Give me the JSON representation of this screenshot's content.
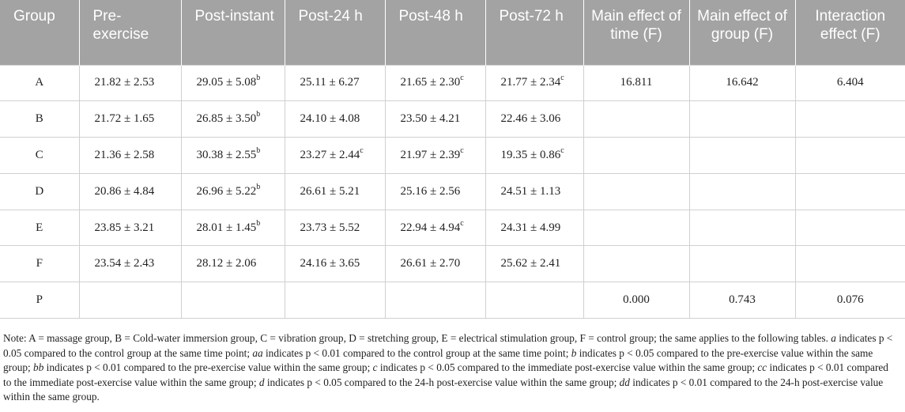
{
  "columns": [
    "Group",
    "Pre-exercise",
    "Post-instant",
    "Post-24 h",
    "Post-48 h",
    "Post-72 h",
    "Main effect of time (F)",
    "Main effect of group (F)",
    "Interaction effect (F)"
  ],
  "rows": [
    {
      "group": "A",
      "pre": "21.82 ± 2.53",
      "post_instant": "29.05 ± 5.08",
      "post_instant_sup": "b",
      "post24": "25.11 ± 6.27",
      "post24_sup": "",
      "post48": "21.65 ± 2.30",
      "post48_sup": "c",
      "post72": "21.77 ± 2.34",
      "post72_sup": "c",
      "time_f": "16.811",
      "group_f": "16.642",
      "interaction_f": "6.404"
    },
    {
      "group": "B",
      "pre": "21.72 ± 1.65",
      "post_instant": "26.85 ± 3.50",
      "post_instant_sup": "b",
      "post24": "24.10 ± 4.08",
      "post24_sup": "",
      "post48": "23.50 ± 4.21",
      "post48_sup": "",
      "post72": "22.46 ± 3.06",
      "post72_sup": "",
      "time_f": "",
      "group_f": "",
      "interaction_f": ""
    },
    {
      "group": "C",
      "pre": "21.36 ± 2.58",
      "post_instant": "30.38 ± 2.55",
      "post_instant_sup": "b",
      "post24": "23.27 ± 2.44",
      "post24_sup": "c",
      "post48": "21.97 ± 2.39",
      "post48_sup": "c",
      "post72": "19.35 ± 0.86",
      "post72_sup": "c",
      "time_f": "",
      "group_f": "",
      "interaction_f": ""
    },
    {
      "group": "D",
      "pre": "20.86 ± 4.84",
      "post_instant": "26.96 ± 5.22",
      "post_instant_sup": "b",
      "post24": "26.61 ± 5.21",
      "post24_sup": "",
      "post48": "25.16 ± 2.56",
      "post48_sup": "",
      "post72": "24.51 ± 1.13",
      "post72_sup": "",
      "time_f": "",
      "group_f": "",
      "interaction_f": ""
    },
    {
      "group": "E",
      "pre": "23.85 ± 3.21",
      "post_instant": "28.01 ± 1.45",
      "post_instant_sup": "b",
      "post24": "23.73 ± 5.52",
      "post24_sup": "",
      "post48": "22.94 ± 4.94",
      "post48_sup": "c",
      "post72": "24.31 ± 4.99",
      "post72_sup": "",
      "time_f": "",
      "group_f": "",
      "interaction_f": ""
    },
    {
      "group": "F",
      "pre": "23.54 ± 2.43",
      "post_instant": "28.12 ± 2.06",
      "post_instant_sup": "",
      "post24": "24.16 ± 3.65",
      "post24_sup": "",
      "post48": "26.61 ± 2.70",
      "post48_sup": "",
      "post72": "25.62 ± 2.41",
      "post72_sup": "",
      "time_f": "",
      "group_f": "",
      "interaction_f": ""
    },
    {
      "group": "P",
      "pre": "",
      "post_instant": "",
      "post_instant_sup": "",
      "post24": "",
      "post24_sup": "",
      "post48": "",
      "post48_sup": "",
      "post72": "",
      "post72_sup": "",
      "time_f": "0.000",
      "group_f": "0.743",
      "interaction_f": "0.076"
    }
  ],
  "note": {
    "intro": "Note: A = massage group, B = Cold-water immersion group, C = vibration group, D = stretching group, E = electrical stimulation group, F = control group; the same applies to the following tables.",
    "items": [
      {
        "sym": "a",
        "text": "indicates p < 0.05 compared to the control group at the same time point;"
      },
      {
        "sym": "aa",
        "text": "indicates p < 0.01 compared to the control group at the same time point;"
      },
      {
        "sym": "b",
        "text": "indicates p < 0.05 compared to the pre-exercise value within the same group;"
      },
      {
        "sym": "bb",
        "text": "indicates p < 0.01 compared to the pre-exercise value within the same group;"
      },
      {
        "sym": "c",
        "text": "indicates p < 0.05 compared to the immediate post-exercise value within the same group;"
      },
      {
        "sym": "cc",
        "text": "indicates p < 0.01 compared to the immediate post-exercise value within the same group;"
      },
      {
        "sym": "d",
        "text": "indicates p < 0.05 compared to the 24-h post-exercise value within the same group;"
      },
      {
        "sym": "dd",
        "text": "indicates p < 0.01 compared to the 24-h post-exercise value within the same group."
      }
    ]
  },
  "colors": {
    "header_bg": "#a3a3a3",
    "header_text": "#ffffff",
    "border": "#d0d0d0"
  }
}
